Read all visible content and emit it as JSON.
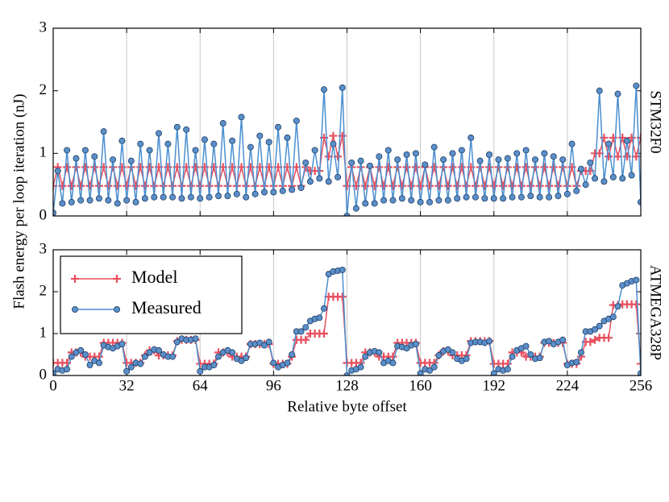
{
  "ylabel": "Flash energy per loop iteration (nJ)",
  "chart_data": [
    {
      "type": "line",
      "label": "STM32F0",
      "x": [
        0,
        2,
        4,
        6,
        8,
        10,
        12,
        14,
        16,
        18,
        20,
        22,
        24,
        26,
        28,
        30,
        32,
        34,
        36,
        38,
        40,
        42,
        44,
        46,
        48,
        50,
        52,
        54,
        56,
        58,
        60,
        62,
        64,
        66,
        68,
        70,
        72,
        74,
        76,
        78,
        80,
        82,
        84,
        86,
        88,
        90,
        92,
        94,
        96,
        98,
        100,
        102,
        104,
        106,
        108,
        110,
        112,
        114,
        116,
        118,
        120,
        122,
        124,
        126,
        128,
        130,
        132,
        134,
        136,
        138,
        140,
        142,
        144,
        146,
        148,
        150,
        152,
        154,
        156,
        158,
        160,
        162,
        164,
        166,
        168,
        170,
        172,
        174,
        176,
        178,
        180,
        182,
        184,
        186,
        188,
        190,
        192,
        194,
        196,
        198,
        200,
        202,
        204,
        206,
        208,
        210,
        212,
        214,
        216,
        218,
        220,
        222,
        224,
        226,
        228,
        230,
        232,
        234,
        236,
        238,
        240,
        242,
        244,
        246,
        248,
        250,
        252,
        254,
        256
      ],
      "series": [
        {
          "color": "#e8505f",
          "marker": "plus",
          "values": [
            0.48,
            0.78,
            0.48,
            0.78,
            0.48,
            0.78,
            0.48,
            0.78,
            0.48,
            0.78,
            0.48,
            0.78,
            0.48,
            0.78,
            0.48,
            0.78,
            0.48,
            0.78,
            0.48,
            0.78,
            0.48,
            0.78,
            0.48,
            0.78,
            0.48,
            0.78,
            0.48,
            0.78,
            0.48,
            0.78,
            0.48,
            0.78,
            0.48,
            0.78,
            0.48,
            0.78,
            0.48,
            0.78,
            0.48,
            0.78,
            0.48,
            0.78,
            0.48,
            0.78,
            0.48,
            0.78,
            0.48,
            0.78,
            0.48,
            0.78,
            0.48,
            0.78,
            0.48,
            0.78,
            0.48,
            0.78,
            0.72,
            0.72,
            0.72,
            1.25,
            0.95,
            1.28,
            0.95,
            1.28,
            0.48,
            0.78,
            0.48,
            0.78,
            0.48,
            0.78,
            0.48,
            0.78,
            0.48,
            0.78,
            0.48,
            0.78,
            0.48,
            0.78,
            0.48,
            0.78,
            0.48,
            0.78,
            0.48,
            0.78,
            0.48,
            0.78,
            0.48,
            0.78,
            0.48,
            0.78,
            0.48,
            0.78,
            0.48,
            0.78,
            0.48,
            0.78,
            0.48,
            0.78,
            0.48,
            0.78,
            0.48,
            0.78,
            0.48,
            0.78,
            0.48,
            0.78,
            0.48,
            0.78,
            0.48,
            0.78,
            0.48,
            0.78,
            0.48,
            0.78,
            0.48,
            0.72,
            0.72,
            0.72,
            1.0,
            1.0,
            1.25,
            0.95,
            1.25,
            0.95,
            1.25,
            0.95,
            1.25,
            0.95,
            1.25
          ]
        },
        {
          "color": "#4a8fd0",
          "marker": "circle",
          "values": [
            0.05,
            0.72,
            0.2,
            1.05,
            0.22,
            0.92,
            0.25,
            1.05,
            0.25,
            0.95,
            0.28,
            1.35,
            0.25,
            0.9,
            0.2,
            1.2,
            0.25,
            0.88,
            0.22,
            1.15,
            0.28,
            1.05,
            0.3,
            1.32,
            0.3,
            1.15,
            0.3,
            1.42,
            0.28,
            1.38,
            0.3,
            1.05,
            0.28,
            1.22,
            0.3,
            1.15,
            0.32,
            1.48,
            0.32,
            1.2,
            0.35,
            1.58,
            0.3,
            1.1,
            0.35,
            1.28,
            0.38,
            1.18,
            0.38,
            1.42,
            0.4,
            1.25,
            0.42,
            1.52,
            0.45,
            0.85,
            0.55,
            1.05,
            0.6,
            2.02,
            0.55,
            1.15,
            0.62,
            2.05,
            0.0,
            0.85,
            0.12,
            0.88,
            0.2,
            0.8,
            0.2,
            0.95,
            0.25,
            1.05,
            0.25,
            0.9,
            0.28,
            0.98,
            0.25,
            1.0,
            0.22,
            0.82,
            0.22,
            1.1,
            0.25,
            0.9,
            0.25,
            1.0,
            0.28,
            1.05,
            0.3,
            1.25,
            0.3,
            0.88,
            0.28,
            0.98,
            0.28,
            0.9,
            0.28,
            0.92,
            0.3,
            1.0,
            0.3,
            1.05,
            0.32,
            0.9,
            0.3,
            1.0,
            0.3,
            0.95,
            0.32,
            0.9,
            0.35,
            1.15,
            0.4,
            0.75,
            0.5,
            0.85,
            0.6,
            2.0,
            0.55,
            1.15,
            0.62,
            1.95,
            0.6,
            1.2,
            0.65,
            2.08,
            0.22
          ]
        }
      ],
      "xlim": [
        0,
        256
      ],
      "xticks": [
        0,
        32,
        64,
        96,
        128,
        160,
        192,
        224,
        256
      ],
      "ylim": [
        0,
        3
      ],
      "yticks": [
        0,
        1,
        2,
        3
      ],
      "grid": true
    },
    {
      "type": "line",
      "label": "ATMEGA328P",
      "xlabel": "Relative byte offset",
      "x": [
        0,
        2,
        4,
        6,
        8,
        10,
        12,
        14,
        16,
        18,
        20,
        22,
        24,
        26,
        28,
        30,
        32,
        34,
        36,
        38,
        40,
        42,
        44,
        46,
        48,
        50,
        52,
        54,
        56,
        58,
        60,
        62,
        64,
        66,
        68,
        70,
        72,
        74,
        76,
        78,
        80,
        82,
        84,
        86,
        88,
        90,
        92,
        94,
        96,
        98,
        100,
        102,
        104,
        106,
        108,
        110,
        112,
        114,
        116,
        118,
        120,
        122,
        124,
        126,
        128,
        130,
        132,
        134,
        136,
        138,
        140,
        142,
        144,
        146,
        148,
        150,
        152,
        154,
        156,
        158,
        160,
        162,
        164,
        166,
        168,
        170,
        172,
        174,
        176,
        178,
        180,
        182,
        184,
        186,
        188,
        190,
        192,
        194,
        196,
        198,
        200,
        202,
        204,
        206,
        208,
        210,
        212,
        214,
        216,
        218,
        220,
        222,
        224,
        226,
        228,
        230,
        232,
        234,
        236,
        238,
        240,
        242,
        244,
        246,
        248,
        250,
        252,
        254,
        256
      ],
      "series": [
        {
          "name": "Model",
          "color": "#e8505f",
          "marker": "plus",
          "values": [
            0.3,
            0.3,
            0.3,
            0.3,
            0.55,
            0.55,
            0.55,
            0.45,
            0.45,
            0.45,
            0.45,
            0.78,
            0.78,
            0.78,
            0.78,
            0.78,
            0.3,
            0.3,
            0.3,
            0.3,
            0.48,
            0.6,
            0.6,
            0.48,
            0.48,
            0.48,
            0.48,
            0.82,
            0.85,
            0.85,
            0.85,
            0.85,
            0.28,
            0.28,
            0.28,
            0.28,
            0.55,
            0.55,
            0.55,
            0.45,
            0.45,
            0.45,
            0.45,
            0.75,
            0.75,
            0.75,
            0.75,
            0.75,
            0.28,
            0.28,
            0.28,
            0.28,
            0.45,
            0.85,
            0.85,
            0.85,
            1.0,
            1.0,
            1.0,
            1.0,
            1.88,
            1.88,
            1.88,
            1.88,
            0.3,
            0.3,
            0.3,
            0.3,
            0.55,
            0.55,
            0.55,
            0.45,
            0.45,
            0.45,
            0.45,
            0.78,
            0.78,
            0.78,
            0.78,
            0.78,
            0.3,
            0.3,
            0.3,
            0.3,
            0.48,
            0.58,
            0.58,
            0.48,
            0.48,
            0.48,
            0.48,
            0.82,
            0.82,
            0.82,
            0.82,
            0.82,
            0.28,
            0.28,
            0.28,
            0.28,
            0.55,
            0.55,
            0.55,
            0.45,
            0.45,
            0.45,
            0.45,
            0.78,
            0.78,
            0.78,
            0.78,
            0.78,
            0.28,
            0.28,
            0.28,
            0.45,
            0.8,
            0.8,
            0.85,
            0.9,
            0.9,
            0.9,
            1.68,
            1.68,
            1.7,
            1.7,
            1.7,
            1.7,
            0.28
          ]
        },
        {
          "name": "Measured",
          "color": "#4a8fd0",
          "marker": "circle",
          "values": [
            0.05,
            0.15,
            0.12,
            0.15,
            0.45,
            0.55,
            0.6,
            0.5,
            0.25,
            0.35,
            0.3,
            0.72,
            0.68,
            0.65,
            0.7,
            0.75,
            0.1,
            0.2,
            0.3,
            0.28,
            0.45,
            0.55,
            0.62,
            0.6,
            0.5,
            0.45,
            0.45,
            0.8,
            0.88,
            0.85,
            0.85,
            0.88,
            0.1,
            0.2,
            0.2,
            0.25,
            0.45,
            0.55,
            0.6,
            0.55,
            0.4,
            0.35,
            0.42,
            0.75,
            0.75,
            0.78,
            0.72,
            0.8,
            0.3,
            0.2,
            0.25,
            0.3,
            0.5,
            1.05,
            1.05,
            1.15,
            1.3,
            1.35,
            1.38,
            1.6,
            2.42,
            2.48,
            2.5,
            2.52,
            0.0,
            0.12,
            0.15,
            0.2,
            0.45,
            0.55,
            0.58,
            0.55,
            0.3,
            0.35,
            0.3,
            0.7,
            0.68,
            0.65,
            0.72,
            0.75,
            0.05,
            0.15,
            0.12,
            0.2,
            0.48,
            0.58,
            0.62,
            0.55,
            0.4,
            0.35,
            0.4,
            0.78,
            0.8,
            0.8,
            0.78,
            0.82,
            0.05,
            0.15,
            0.12,
            0.15,
            0.45,
            0.6,
            0.65,
            0.7,
            0.5,
            0.4,
            0.42,
            0.8,
            0.82,
            0.75,
            0.8,
            0.85,
            0.25,
            0.3,
            0.32,
            0.55,
            1.05,
            1.05,
            1.1,
            1.18,
            1.3,
            1.35,
            1.4,
            1.65,
            2.15,
            2.2,
            2.25,
            2.28,
            0.05
          ]
        }
      ],
      "xlim": [
        0,
        256
      ],
      "xticks": [
        0,
        32,
        64,
        96,
        128,
        160,
        192,
        224,
        256
      ],
      "ylim": [
        0,
        3
      ],
      "yticks": [
        0,
        1,
        2,
        3
      ],
      "grid": true,
      "legend": "upper left"
    }
  ]
}
